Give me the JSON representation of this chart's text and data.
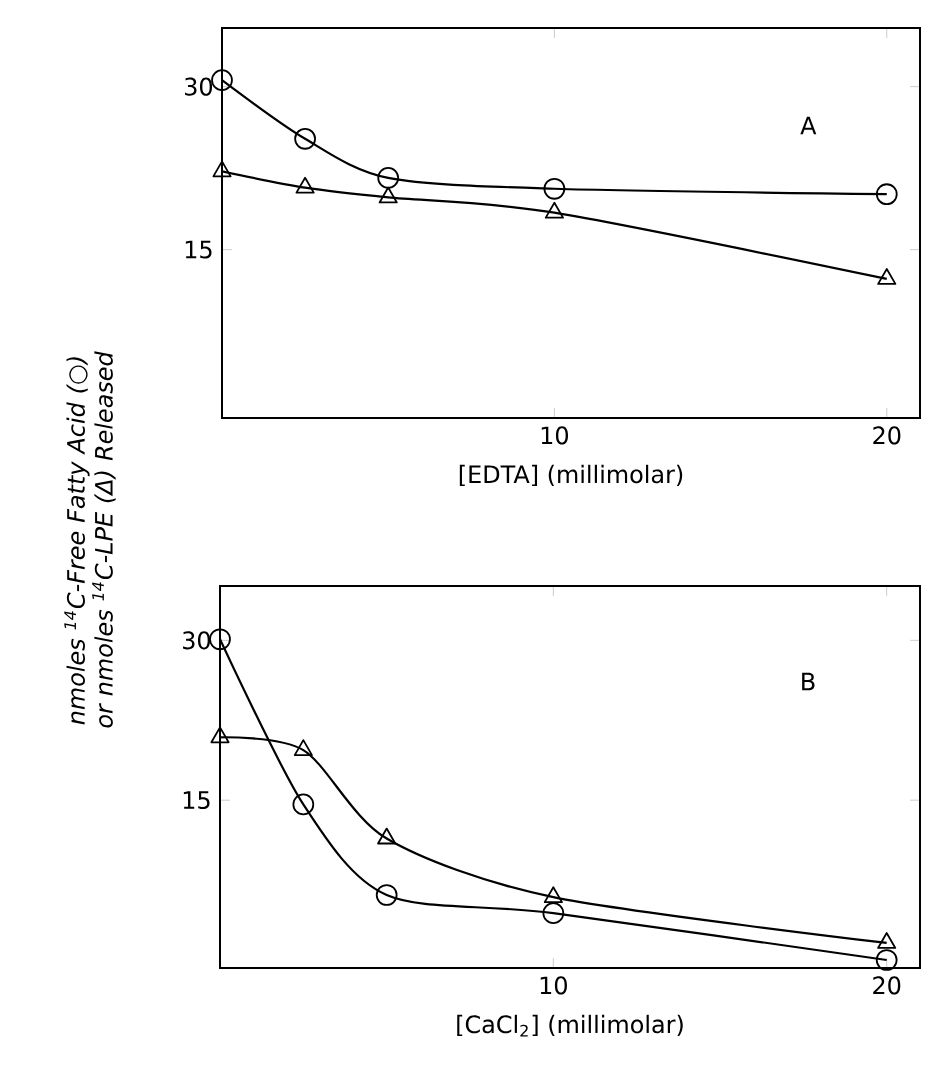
{
  "chart_data": [
    {
      "type": "line",
      "xlabel": "[EDTA] (millimolar)",
      "ylabel": "nmoles $^{14}$C-Free Fatty Acid (○) or nmoles $^{14}$C-LPE (Δ) Released",
      "annotations": [
        "A"
      ],
      "xlim": [
        0,
        21
      ],
      "xticks": [
        10,
        20
      ],
      "ylim": [
        -0.5,
        35.4
      ],
      "yticks": [
        15,
        30
      ],
      "grid": false,
      "line_style": "solid",
      "x": [
        0,
        2.5,
        5,
        10,
        20
      ],
      "series": [
        {
          "color": "#000000",
          "marker": "circle",
          "values": [
            30.6,
            25.2,
            21.6,
            20.6,
            20.1
          ]
        },
        {
          "color": "#000000",
          "marker": "triangle",
          "values": [
            22.2,
            20.7,
            19.8,
            18.4,
            12.3
          ]
        }
      ]
    },
    {
      "type": "line",
      "xlabel": "[CaCl$_{2}$] (millimolar)",
      "annotations": [
        "B"
      ],
      "xlim": [
        0,
        21
      ],
      "xticks": [
        10,
        20
      ],
      "ylim": [
        -0.75,
        35.1
      ],
      "yticks": [
        15,
        30
      ],
      "grid": false,
      "line_style": "solid",
      "x": [
        0,
        2.5,
        5,
        10,
        20
      ],
      "series": [
        {
          "color": "#000000",
          "marker": "circle",
          "values": [
            30.1,
            14.6,
            6.1,
            4.4,
            0
          ]
        },
        {
          "color": "#000000",
          "marker": "triangle",
          "values": [
            20.9,
            19.7,
            11.4,
            5.9,
            1.6
          ]
        }
      ]
    }
  ]
}
